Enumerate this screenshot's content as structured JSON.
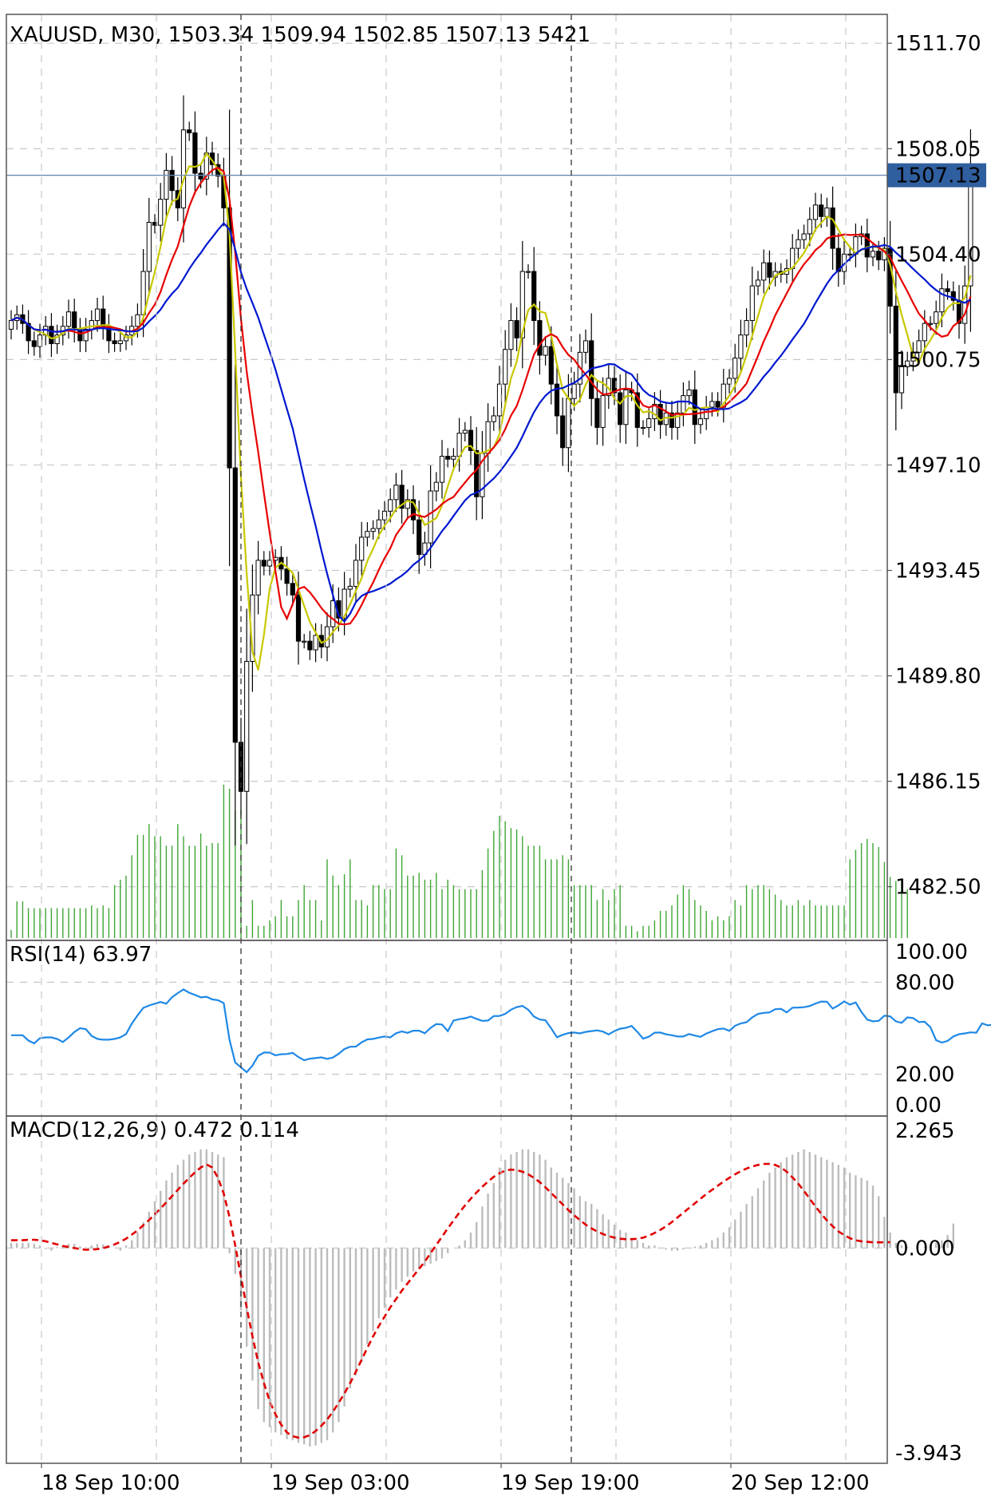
{
  "chart_data": [
    {
      "type": "candlestick",
      "title": "XAUUSD, M30, 1503.34 1509.94 1502.85 1507.13 5421",
      "symbol": "XAUUSD",
      "timeframe": "M30",
      "last_bar": {
        "open": 1503.34,
        "high": 1509.94,
        "low": 1502.85,
        "close": 1507.13,
        "volume": 5421
      },
      "current_price_label": "1507.13",
      "y_ticks": [
        "1511.70",
        "1508.05",
        "1504.40",
        "1500.75",
        "1497.10",
        "1493.45",
        "1489.80",
        "1486.15",
        "1482.50"
      ],
      "ylim": [
        1481.0,
        1512.7
      ],
      "x_ticks": [
        "18 Sep 10:00",
        "19 Sep 03:00",
        "19 Sep 19:00",
        "20 Sep 12:00"
      ],
      "grid": true,
      "closes": [
        1502.1,
        1502.3,
        1502.0,
        1501.4,
        1501.2,
        1501.6,
        1501.9,
        1501.3,
        1501.6,
        1501.9,
        1502.4,
        1501.8,
        1501.4,
        1501.8,
        1502.1,
        1502.5,
        1501.9,
        1501.4,
        1501.3,
        1501.4,
        1501.6,
        1501.9,
        1502.3,
        1503.8,
        1505.5,
        1505.4,
        1506.3,
        1507.3,
        1506.6,
        1506.0,
        1508.7,
        1508.6,
        1507.2,
        1507.0,
        1507.9,
        1507.5,
        1507.1,
        1506.0,
        1497.0,
        1487.5,
        1485.8,
        1490.3,
        1492.6,
        1493.8,
        1493.6,
        1493.8,
        1493.9,
        1493.5,
        1493.0,
        1492.6,
        1491.0,
        1491.0,
        1490.7,
        1491.2,
        1490.8,
        1491.5,
        1492.4,
        1491.8,
        1492.8,
        1492.9,
        1493.8,
        1494.6,
        1494.8,
        1494.9,
        1495.2,
        1495.5,
        1495.9,
        1496.4,
        1495.6,
        1495.9,
        1495.2,
        1494.0,
        1494.4,
        1496.2,
        1496.5,
        1497.4,
        1497.3,
        1497.4,
        1498.2,
        1498.3,
        1497.6,
        1496.0,
        1497.5,
        1498.6,
        1498.8,
        1499.9,
        1501.1,
        1502.1,
        1501.5,
        1503.8,
        1503.8,
        1502.1,
        1500.9,
        1501.2,
        1499.9,
        1498.8,
        1497.7,
        1499.4,
        1499.9,
        1501.0,
        1501.4,
        1499.4,
        1498.4,
        1499.5,
        1500.1,
        1499.6,
        1498.5,
        1499.7,
        1499.6,
        1498.4,
        1498.4,
        1498.7,
        1499.2,
        1498.5,
        1498.9,
        1498.4,
        1498.9,
        1499.5,
        1499.7,
        1498.5,
        1498.7,
        1499.1,
        1499.3,
        1499.1,
        1499.9,
        1500.1,
        1500.8,
        1501.6,
        1502.1,
        1503.3,
        1503.5,
        1504.1,
        1503.6,
        1503.8,
        1503.7,
        1503.9,
        1504.6,
        1504.9,
        1505.1,
        1505.6,
        1506.1,
        1505.7,
        1506.0,
        1504.6,
        1503.8,
        1504.4,
        1504.4,
        1505.0,
        1505.1,
        1504.3,
        1504.5,
        1504.2,
        1504.6,
        1502.6,
        1499.6,
        1500.5,
        1500.7,
        1501.0,
        1501.4,
        1502.0,
        1502.0,
        1502.4,
        1503.2,
        1503.1,
        1502.8,
        1502.0,
        1503.3,
        1507.13
      ],
      "volume_rel": [
        0.06,
        0.27,
        0.27,
        0.22,
        0.22,
        0.22,
        0.22,
        0.22,
        0.22,
        0.22,
        0.22,
        0.22,
        0.22,
        0.22,
        0.24,
        0.22,
        0.24,
        0.22,
        0.39,
        0.43,
        0.46,
        0.61,
        0.76,
        0.76,
        0.84,
        0.75,
        0.75,
        0.68,
        0.68,
        0.84,
        0.75,
        0.68,
        0.68,
        0.77,
        0.68,
        0.7,
        0.7,
        1.13,
        1.1,
        0.94,
        0.94,
        0.09,
        0.28,
        0.09,
        0.09,
        0.13,
        0.16,
        0.28,
        0.16,
        0.16,
        0.28,
        0.39,
        0.28,
        0.28,
        0.13,
        0.58,
        0.46,
        0.39,
        0.47,
        0.58,
        0.28,
        0.28,
        0.24,
        0.39,
        0.39,
        0.36,
        0.36,
        0.66,
        0.61,
        0.46,
        0.46,
        0.48,
        0.43,
        0.43,
        0.48,
        0.36,
        0.43,
        0.39,
        0.36,
        0.36,
        0.36,
        0.36,
        0.5,
        0.66,
        0.79,
        0.9,
        0.86,
        0.81,
        0.8,
        0.75,
        0.68,
        0.68,
        0.68,
        0.58,
        0.58,
        0.58,
        0.61,
        0.58,
        0.39,
        0.39,
        0.39,
        0.39,
        0.28,
        0.36,
        0.28,
        0.36,
        0.39,
        0.09,
        0.09,
        0.05,
        0.09,
        0.09,
        0.13,
        0.2,
        0.2,
        0.24,
        0.32,
        0.39,
        0.36,
        0.28,
        0.24,
        0.2,
        0.13,
        0.16,
        0.13,
        0.16,
        0.28,
        0.24,
        0.39,
        0.36,
        0.39,
        0.39,
        0.36,
        0.32,
        0.28,
        0.24,
        0.24,
        0.28,
        0.24,
        0.28,
        0.24,
        0.24,
        0.24,
        0.24,
        0.24,
        0.24,
        0.58,
        0.65,
        0.7,
        0.73,
        0.7,
        0.67,
        0.56,
        0.45,
        0.42,
        0.42,
        0.36
      ],
      "moving_averages": [
        {
          "color": "#c8c800"
        },
        {
          "color": "#e80000"
        },
        {
          "color": "#0018d0"
        }
      ],
      "colors": {
        "up_candle": "#ffffff",
        "down_candle": "#000000",
        "wick": "#000000",
        "volume": "#3fa535",
        "price_line": "#6a8ab0",
        "price_box": "#2f5f9f"
      }
    },
    {
      "type": "line",
      "label": "RSI(14) 63.97",
      "y_ticks": [
        "100.00",
        "80.00",
        "20.00",
        "0.00"
      ],
      "ylim": [
        0,
        100
      ],
      "levels": [
        80,
        20
      ],
      "color": "#1e88e5",
      "values": [
        45.4,
        45.4,
        45.4,
        42.0,
        40.1,
        43.5,
        44.0,
        44.0,
        43.0,
        41.0,
        44.0,
        47.5,
        50.0,
        49.4,
        45.0,
        43.0,
        42.5,
        42.5,
        43.0,
        44.0,
        46.2,
        53.0,
        58.4,
        63.3,
        64.8,
        66.0,
        67.1,
        66.0,
        70.2,
        72.9,
        75.3,
        73.1,
        71.7,
        70.1,
        70.5,
        68.8,
        68.3,
        66.4,
        42.5,
        27.6,
        24.5,
        21.3,
        25.6,
        32.0,
        34.1,
        34.1,
        32.3,
        33.0,
        33.2,
        33.9,
        31.2,
        29.1,
        30.1,
        30.5,
        31.0,
        30.0,
        30.9,
        33.3,
        36.4,
        37.9,
        38.0,
        40.8,
        42.7,
        43.0,
        43.9,
        44.6,
        44.0,
        46.7,
        47.9,
        47.0,
        48.4,
        48.4,
        46.7,
        50.2,
        52.7,
        52.4,
        48.1,
        55.0,
        55.9,
        56.5,
        57.6,
        56.1,
        54.8,
        55.0,
        57.9,
        58.0,
        59.4,
        62.1,
        63.8,
        64.6,
        62.1,
        57.6,
        55.7,
        55.2,
        49.9,
        44.1,
        45.7,
        46.8,
        47.2,
        46.6,
        47.6,
        48.1,
        48.6,
        47.8,
        46.0,
        48.1,
        49.7,
        50.2,
        51.5,
        47.6,
        43.2,
        44.5,
        47.1,
        47.2,
        46.0,
        45.4,
        44.6,
        44.6,
        46.2,
        45.2,
        44.4,
        46.5,
        48.0,
        49.4,
        49.8,
        48.3,
        51.6,
        53.1,
        53.9,
        57.1,
        59.3,
        60.0,
        60.3,
        62.4,
        62.6,
        60.3,
        63.4,
        63.5,
        63.7,
        64.5,
        66.1,
        67.4,
        67.3,
        62.8,
        64.9,
        67.5,
        65.4,
        66.8,
        60.6,
        55.6,
        54.5,
        54.8,
        58.2,
        57.7,
        54.5,
        53.5,
        57.1,
        56.6,
        54.0,
        54.2,
        50.7,
        42.2,
        40.6,
        41.7,
        44.6,
        46.1,
        46.6,
        47.3,
        47.1,
        53.2,
        51.9,
        52.3,
        51.2,
        51.1,
        53.6,
        63.97
      ]
    },
    {
      "type": "bar+line",
      "label": "MACD(12,26,9) 0.472 0.114",
      "y_ticks": [
        "2.265",
        "0.000",
        "-3.943"
      ],
      "ylim": [
        -3.943,
        2.265
      ],
      "histogram_color": "#bcbcbc",
      "signal_color": "#e00000",
      "macd": [
        0.1,
        0.1,
        0.1,
        0.1,
        0.08,
        0.05,
        -0.02,
        -0.05,
        0.02,
        0.05,
        0.08,
        0.08,
        0.03,
        0.02,
        0.05,
        0.08,
        0.07,
        0.03,
        0.0,
        -0.05,
        0.05,
        0.15,
        0.3,
        0.5,
        0.7,
        0.9,
        1.1,
        1.3,
        1.45,
        1.6,
        1.7,
        1.8,
        1.85,
        1.9,
        1.9,
        1.85,
        1.8,
        1.75,
        -0.1,
        -0.5,
        -1.2,
        -1.9,
        -2.55,
        -3.1,
        -3.35,
        -3.45,
        -3.55,
        -3.6,
        -3.68,
        -3.7,
        -3.75,
        -3.78,
        -3.82,
        -3.8,
        -3.75,
        -3.7,
        -3.55,
        -3.35,
        -3.05,
        -2.7,
        -2.45,
        -2.2,
        -1.85,
        -1.6,
        -1.35,
        -1.15,
        -0.95,
        -0.8,
        -0.65,
        -0.55,
        -0.45,
        -0.4,
        -0.35,
        -0.3,
        -0.25,
        -0.2,
        -0.1,
        0.0,
        0.05,
        0.15,
        0.3,
        0.5,
        0.8,
        1.05,
        1.25,
        1.55,
        1.7,
        1.8,
        1.85,
        1.9,
        1.9,
        1.85,
        1.8,
        1.7,
        1.55,
        1.45,
        1.35,
        1.25,
        1.15,
        1.0,
        0.9,
        0.85,
        0.75,
        0.65,
        0.55,
        0.45,
        0.35,
        0.3,
        0.2,
        0.15,
        0.1,
        0.05,
        0.05,
        0.0,
        -0.03,
        -0.05,
        -0.05,
        -0.03,
        0.0,
        0.03,
        0.05,
        0.1,
        0.15,
        0.2,
        0.3,
        0.4,
        0.55,
        0.7,
        0.85,
        1.0,
        1.15,
        1.3,
        1.45,
        1.55,
        1.65,
        1.75,
        1.8,
        1.85,
        1.9,
        1.85,
        1.8,
        1.75,
        1.7,
        1.65,
        1.6,
        1.55,
        1.45,
        1.4,
        1.35,
        1.3,
        1.2,
        1.0,
        0.6,
        0.3,
        0.1,
        0.05,
        0.02,
        0.0,
        0.0,
        0.02,
        0.05,
        0.1,
        0.15,
        0.25,
        0.472
      ],
      "signal": [
        0.15,
        0.15,
        0.15,
        0.16,
        0.16,
        0.15,
        0.13,
        0.1,
        0.07,
        0.04,
        0.02,
        0.0,
        -0.02,
        -0.03,
        -0.03,
        -0.02,
        0.0,
        0.03,
        0.07,
        0.12,
        0.18,
        0.26,
        0.34,
        0.44,
        0.54,
        0.65,
        0.76,
        0.88,
        1.0,
        1.12,
        1.24,
        1.35,
        1.46,
        1.55,
        1.61,
        1.55,
        1.35,
        1.05,
        0.6,
        0.05,
        -0.55,
        -1.15,
        -1.7,
        -2.2,
        -2.6,
        -2.95,
        -3.2,
        -3.4,
        -3.55,
        -3.62,
        -3.65,
        -3.64,
        -3.6,
        -3.52,
        -3.42,
        -3.3,
        -3.15,
        -2.98,
        -2.8,
        -2.6,
        -2.38,
        -2.15,
        -1.92,
        -1.7,
        -1.5,
        -1.32,
        -1.14,
        -0.98,
        -0.82,
        -0.68,
        -0.54,
        -0.4,
        -0.26,
        -0.1,
        0.06,
        0.22,
        0.38,
        0.53,
        0.68,
        0.82,
        0.95,
        1.07,
        1.18,
        1.28,
        1.37,
        1.44,
        1.49,
        1.51,
        1.5,
        1.47,
        1.42,
        1.35,
        1.27,
        1.17,
        1.06,
        0.95,
        0.84,
        0.73,
        0.63,
        0.54,
        0.45,
        0.38,
        0.32,
        0.27,
        0.23,
        0.2,
        0.18,
        0.17,
        0.17,
        0.18,
        0.2,
        0.24,
        0.29,
        0.35,
        0.42,
        0.5,
        0.59,
        0.68,
        0.77,
        0.86,
        0.95,
        1.04,
        1.12,
        1.2,
        1.28,
        1.35,
        1.42,
        1.48,
        1.53,
        1.57,
        1.6,
        1.62,
        1.62,
        1.6,
        1.55,
        1.47,
        1.36,
        1.24,
        1.1,
        0.95,
        0.8,
        0.66,
        0.53,
        0.42,
        0.32,
        0.25,
        0.19,
        0.15,
        0.13,
        0.12,
        0.11,
        0.11,
        0.11,
        0.114
      ]
    }
  ]
}
